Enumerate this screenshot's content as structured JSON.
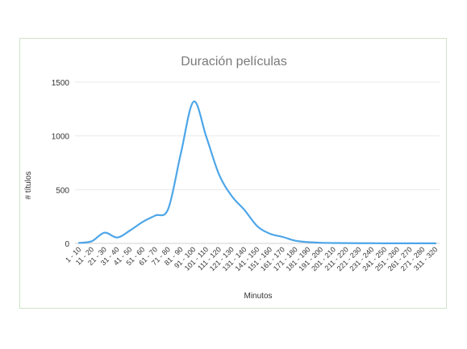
{
  "chart_data": {
    "type": "line",
    "title": "Duración películas",
    "xlabel": "Minutos",
    "ylabel": "# títulos",
    "ylim": [
      0,
      1500
    ],
    "yticks": [
      0,
      500,
      1000,
      1500
    ],
    "grid": true,
    "series_color": "#4da6e8",
    "categories": [
      "1 - 10",
      "11 - 20",
      "21 - 30",
      "31 - 40",
      "41 - 50",
      "51 - 60",
      "61 - 70",
      "71 - 80",
      "81 - 90",
      "91 - 100",
      "101 - 110",
      "111 - 120",
      "121 - 130",
      "131 - 140",
      "141 - 150",
      "151 - 160",
      "161 - 170",
      "171 - 180",
      "181 - 190",
      "191 - 200",
      "201 - 210",
      "211 - 220",
      "221 - 230",
      "231 - 240",
      "241 - 250",
      "251 - 260",
      "261 - 270",
      "271 - 280",
      "311 - 320"
    ],
    "series": [
      {
        "values": [
          5,
          20,
          100,
          55,
          120,
          200,
          260,
          320,
          840,
          1320,
          990,
          640,
          440,
          310,
          160,
          90,
          60,
          25,
          12,
          6,
          4,
          3,
          2,
          2,
          1,
          1,
          1,
          1,
          1
        ]
      }
    ]
  }
}
